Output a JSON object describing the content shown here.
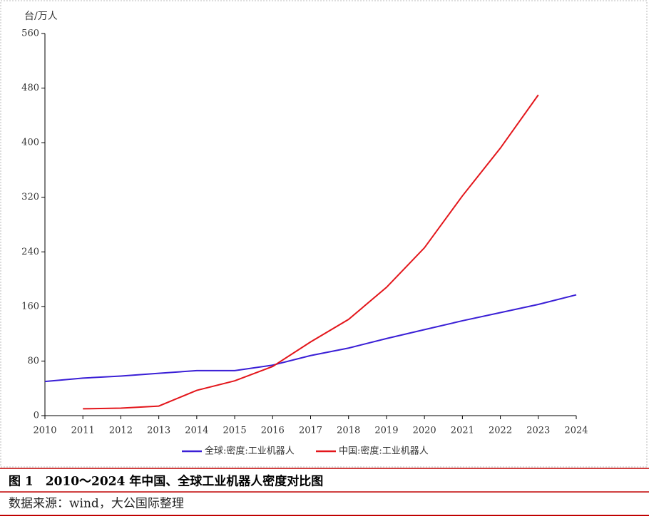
{
  "chart_data": {
    "type": "line",
    "y_label": "台/万人",
    "categories": [
      "2010",
      "2011",
      "2012",
      "2013",
      "2014",
      "2015",
      "2016",
      "2017",
      "2018",
      "2019",
      "2020",
      "2021",
      "2022",
      "2023",
      "2024"
    ],
    "series": [
      {
        "name": "全球:密度:工业机器人",
        "color": "#3a1fd6",
        "values": [
          50,
          55,
          58,
          62,
          66,
          66,
          74,
          88,
          99,
          113,
          126,
          139,
          151,
          163,
          177
        ]
      },
      {
        "name": "中国:密度:工业机器人",
        "color": "#e3161b",
        "values": [
          null,
          10,
          11,
          14,
          37,
          51,
          72,
          108,
          141,
          188,
          246,
          322,
          392,
          470,
          null
        ]
      }
    ],
    "ylim": [
      0,
      560
    ],
    "yticks": [
      0,
      80,
      160,
      240,
      320,
      400,
      480,
      560
    ],
    "legend": "bottom"
  },
  "figure": {
    "caption": "图 1　2010～2024 年中国、全球工业机器人密度对比图",
    "source": "数据来源：wind，大公国际整理"
  }
}
